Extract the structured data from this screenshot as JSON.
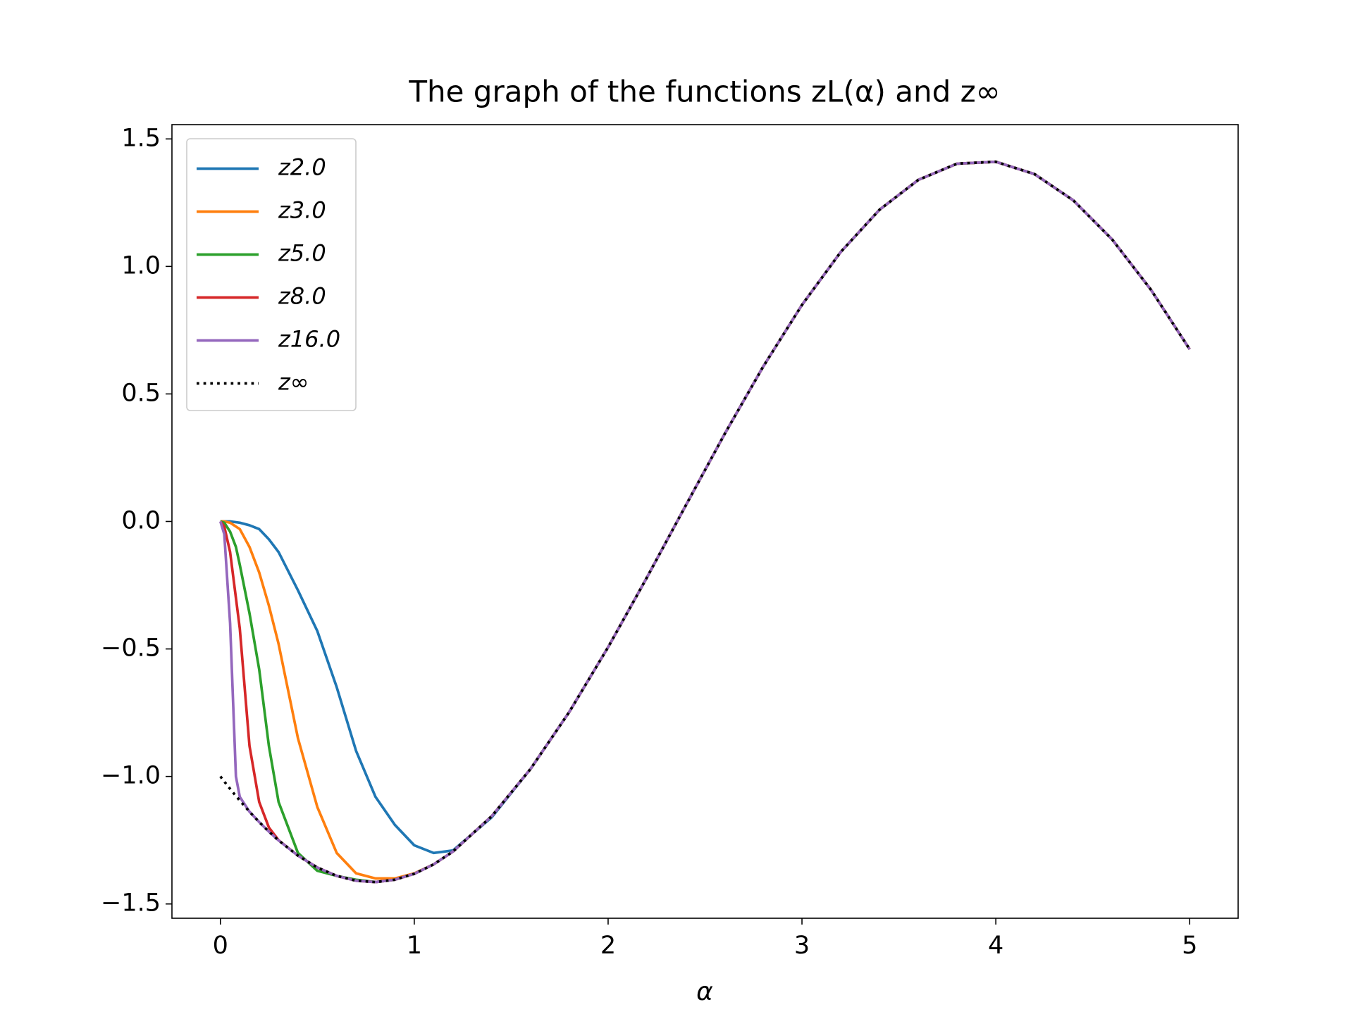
{
  "chart_data": {
    "type": "line",
    "title": "The graph of the functions zL(α) and z∞",
    "x_label": "α",
    "x": [
      0,
      0.02,
      0.05,
      0.08,
      0.1,
      0.15,
      0.2,
      0.25,
      0.3,
      0.4,
      0.5,
      0.6,
      0.7,
      0.8,
      0.9,
      1.0,
      1.1,
      1.2,
      1.4,
      1.6,
      1.8,
      2.0,
      2.2,
      2.4,
      2.6,
      2.8,
      3.0,
      3.2,
      3.4,
      3.6,
      3.8,
      4.0,
      4.2,
      4.4,
      4.6,
      4.8,
      5.0
    ],
    "series": [
      {
        "name": "z2.0",
        "color": "#1f77b4",
        "values": [
          0,
          0,
          0,
          -0.003,
          -0.005,
          -0.015,
          -0.03,
          -0.07,
          -0.12,
          -0.27,
          -0.43,
          -0.65,
          -0.9,
          -1.08,
          -1.19,
          -1.27,
          -1.3,
          -1.29,
          -1.16,
          -0.9704,
          -0.7466,
          -0.4932,
          -0.22,
          0.0619,
          0.3414,
          0.6072,
          0.8489,
          1.0567,
          1.2223,
          1.3393,
          1.4029,
          1.4104,
          1.3619,
          1.2589,
          1.1059,
          0.9087,
          0.6752
        ]
      },
      {
        "name": "z3.0",
        "color": "#ff7f0e",
        "values": [
          0,
          0,
          -0.005,
          -0.02,
          -0.03,
          -0.1,
          -0.2,
          -0.33,
          -0.48,
          -0.85,
          -1.12,
          -1.3,
          -1.38,
          -1.4,
          -1.4,
          -1.38,
          -1.3448,
          -1.2944,
          -1.1554,
          -0.9704,
          -0.7466,
          -0.4932,
          -0.22,
          0.0619,
          0.3414,
          0.6072,
          0.8489,
          1.0567,
          1.2223,
          1.3393,
          1.4029,
          1.4104,
          1.3619,
          1.2589,
          1.1059,
          0.9087,
          0.6752
        ]
      },
      {
        "name": "z5.0",
        "color": "#2ca02c",
        "values": [
          0,
          -0.005,
          -0.04,
          -0.1,
          -0.17,
          -0.36,
          -0.58,
          -0.88,
          -1.1,
          -1.3,
          -1.37,
          -1.39,
          -1.405,
          -1.4141,
          -1.4049,
          -1.3818,
          -1.3448,
          -1.2944,
          -1.1554,
          -0.9704,
          -0.7466,
          -0.4932,
          -0.22,
          0.0619,
          0.3414,
          0.6072,
          0.8489,
          1.0567,
          1.2223,
          1.3393,
          1.4029,
          1.4104,
          1.3619,
          1.2589,
          1.1059,
          0.9087,
          0.6752
        ]
      },
      {
        "name": "z8.0",
        "color": "#d62728",
        "values": [
          0,
          -0.02,
          -0.12,
          -0.3,
          -0.42,
          -0.88,
          -1.1,
          -1.2,
          -1.25,
          -1.3105,
          -1.357,
          -1.3899,
          -1.409,
          -1.4141,
          -1.4049,
          -1.3818,
          -1.3448,
          -1.2944,
          -1.1554,
          -0.9704,
          -0.7466,
          -0.4932,
          -0.22,
          0.0619,
          0.3414,
          0.6072,
          0.8489,
          1.0567,
          1.2223,
          1.3393,
          1.4029,
          1.4104,
          1.3619,
          1.2589,
          1.1059,
          0.9087,
          0.6752
        ]
      },
      {
        "name": "z16.0",
        "color": "#9467bd",
        "values": [
          0,
          -0.05,
          -0.4,
          -1.0,
          -1.08,
          -1.1382,
          -1.1788,
          -1.2163,
          -1.2508,
          -1.3105,
          -1.357,
          -1.3899,
          -1.409,
          -1.4141,
          -1.4049,
          -1.3818,
          -1.3448,
          -1.2944,
          -1.1554,
          -0.9704,
          -0.7466,
          -0.4932,
          -0.22,
          0.0619,
          0.3414,
          0.6072,
          0.8489,
          1.0567,
          1.2223,
          1.3393,
          1.4029,
          1.4104,
          1.3619,
          1.2589,
          1.1059,
          0.9087,
          0.6752
        ]
      },
      {
        "name": "z∞",
        "color": "#000000",
        "linestyle": "dotted",
        "values": [
          -1,
          -1.0198,
          -1.0487,
          -1.0767,
          -1.0948,
          -1.1382,
          -1.1788,
          -1.2163,
          -1.2508,
          -1.3105,
          -1.357,
          -1.3899,
          -1.409,
          -1.4141,
          -1.4049,
          -1.3818,
          -1.3448,
          -1.2944,
          -1.1554,
          -0.9704,
          -0.7466,
          -0.4932,
          -0.22,
          0.0619,
          0.3414,
          0.6072,
          0.8489,
          1.0567,
          1.2223,
          1.3393,
          1.4029,
          1.4104,
          1.3619,
          1.2589,
          1.1059,
          0.9087,
          0.6752
        ]
      }
    ],
    "xlim": [
      -0.25,
      5.25
    ],
    "ylim": [
      -1.556,
      1.556
    ],
    "xticks": [
      0,
      1,
      2,
      3,
      4,
      5
    ],
    "yticks": [
      {
        "value": -1.5,
        "label": "−1.5"
      },
      {
        "value": -1.0,
        "label": "−1.0"
      },
      {
        "value": -0.5,
        "label": "−0.5"
      },
      {
        "value": 0.0,
        "label": "0.0"
      },
      {
        "value": 0.5,
        "label": "0.5"
      },
      {
        "value": 1.0,
        "label": "1.0"
      },
      {
        "value": 1.5,
        "label": "1.5"
      }
    ],
    "legend": "upper left",
    "grid": false
  }
}
